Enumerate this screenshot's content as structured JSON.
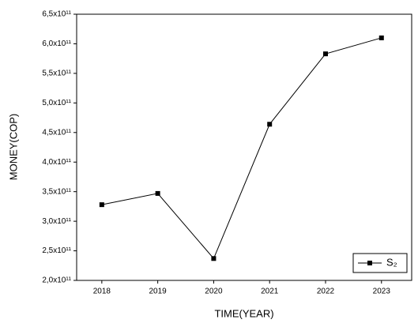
{
  "chart_data": {
    "type": "line",
    "x_label": "TIME(YEAR)",
    "y_label": "MONEY(COP)",
    "x": [
      2018,
      2019,
      2020,
      2021,
      2022,
      2023
    ],
    "series": [
      {
        "name": "S₂",
        "color": "#000000",
        "values": [
          328000000000,
          347000000000,
          237000000000,
          464000000000,
          583000000000,
          610000000000
        ]
      }
    ],
    "xlim": [
      2017.55,
      2023.54
    ],
    "xticks": [
      2018,
      2019,
      2020,
      2021,
      2022,
      2023
    ],
    "ylim": [
      200000000000,
      650000000000
    ],
    "yticks": [
      {
        "value": 200000000000,
        "label": "2,0x10¹¹"
      },
      {
        "value": 250000000000,
        "label": "2,5x10¹¹"
      },
      {
        "value": 300000000000,
        "label": "3,0x10¹¹"
      },
      {
        "value": 350000000000,
        "label": "3,5x10¹¹"
      },
      {
        "value": 400000000000,
        "label": "4,0x10¹¹"
      },
      {
        "value": 450000000000,
        "label": "4,5x10¹¹"
      },
      {
        "value": 500000000000,
        "label": "5,0x10¹¹"
      },
      {
        "value": 550000000000,
        "label": "5,5x10¹¹"
      },
      {
        "value": 600000000000,
        "label": "6,0x10¹¹"
      },
      {
        "value": 650000000000,
        "label": "6,5x10¹¹"
      }
    ],
    "legend": "lower right",
    "grid": false
  }
}
